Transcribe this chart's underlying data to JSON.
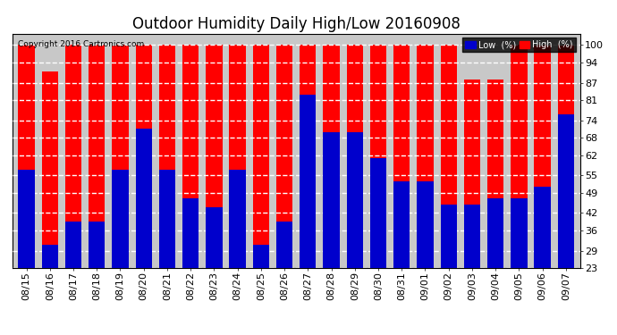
{
  "title": "Outdoor Humidity Daily High/Low 20160908",
  "copyright": "Copyright 2016 Cartronics.com",
  "dates": [
    "08/15",
    "08/16",
    "08/17",
    "08/18",
    "08/19",
    "08/20",
    "08/21",
    "08/22",
    "08/23",
    "08/24",
    "08/25",
    "08/26",
    "08/27",
    "08/28",
    "08/29",
    "08/30",
    "08/31",
    "09/01",
    "09/02",
    "09/03",
    "09/04",
    "09/05",
    "09/06",
    "09/07"
  ],
  "highs": [
    100,
    91,
    100,
    100,
    100,
    100,
    100,
    100,
    100,
    100,
    100,
    100,
    100,
    100,
    100,
    100,
    100,
    100,
    100,
    88,
    88,
    100,
    100,
    100
  ],
  "lows": [
    57,
    31,
    39,
    39,
    57,
    71,
    57,
    47,
    44,
    57,
    31,
    39,
    83,
    70,
    70,
    61,
    53,
    53,
    45,
    45,
    47,
    47,
    51,
    76
  ],
  "bg_color": "#ffffff",
  "plot_bg_color": "#c8c8c8",
  "bar_color_high": "#ff0000",
  "bar_color_low": "#0000cc",
  "grid_color": "#ffffff",
  "yticks": [
    23,
    29,
    36,
    42,
    49,
    55,
    62,
    68,
    74,
    81,
    87,
    94,
    100
  ],
  "ymin": 23,
  "ymax": 104,
  "title_fontsize": 12,
  "tick_fontsize": 8,
  "bar_width": 0.7,
  "legend_low_label": "Low  (%)",
  "legend_high_label": "High  (%)"
}
